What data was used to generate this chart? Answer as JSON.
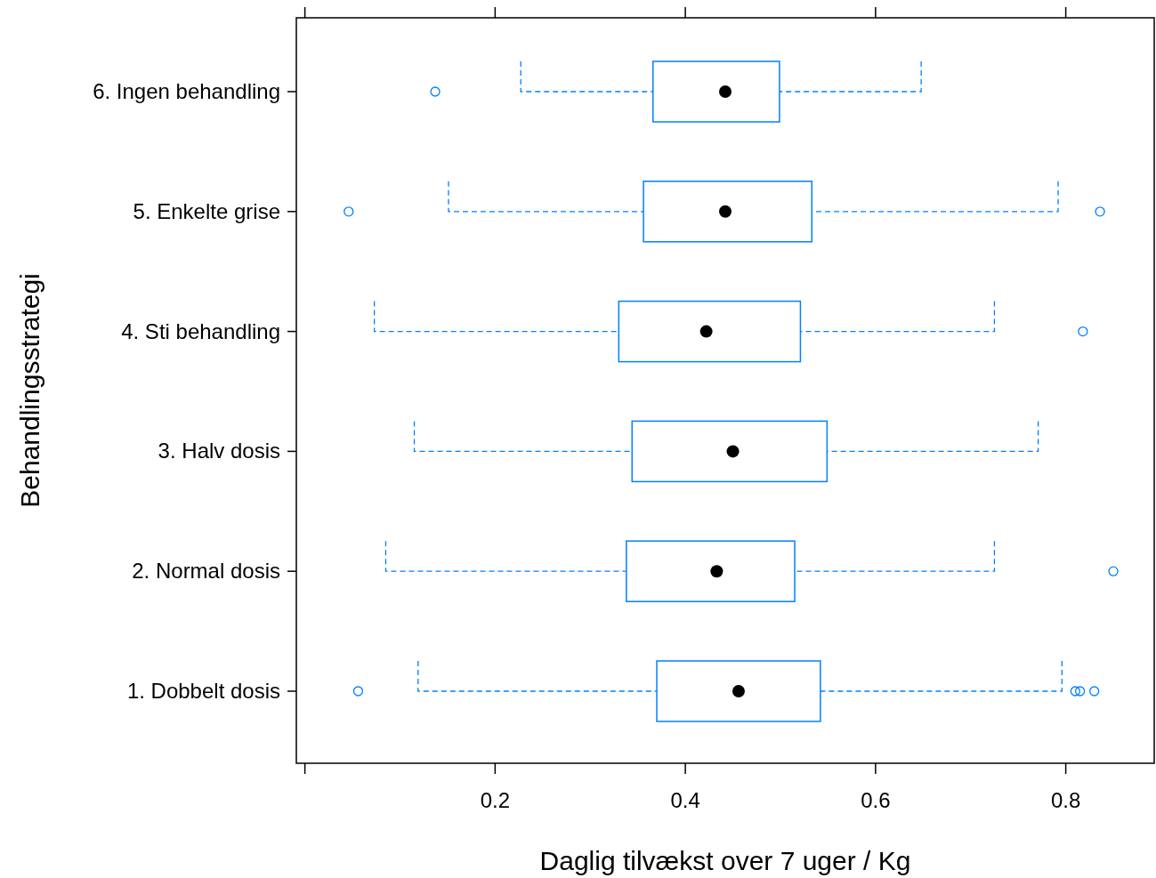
{
  "chart_data": {
    "type": "box",
    "orientation": "horizontal",
    "xlabel": "Daglig tilvækst over 7 uger / Kg",
    "ylabel": "Behandlingsstrategi",
    "categories": [
      "6. Ingen behandling",
      "5. Enkelte grise",
      "4. Sti behandling",
      "3. Halv dosis",
      "2. Normal dosis",
      "1. Dobbelt dosis"
    ],
    "color": "#0080ff",
    "xlim": [
      -0.009,
      0.893
    ],
    "xticks": [
      {
        "value": 0,
        "label": null
      },
      0.2,
      0.4,
      0.6,
      0.8
    ],
    "boxes": [
      {
        "low": 0.227,
        "q1": 0.366,
        "median": 0.442,
        "q3": 0.499,
        "high": 0.648,
        "outliers": [
          0.137
        ]
      },
      {
        "low": 0.151,
        "q1": 0.356,
        "median": 0.442,
        "q3": 0.533,
        "high": 0.792,
        "outliers": [
          0.046,
          0.836
        ]
      },
      {
        "low": 0.073,
        "q1": 0.33,
        "median": 0.422,
        "q3": 0.521,
        "high": 0.725,
        "outliers": [
          0.818
        ]
      },
      {
        "low": 0.115,
        "q1": 0.344,
        "median": 0.45,
        "q3": 0.549,
        "high": 0.771
      },
      {
        "low": 0.085,
        "q1": 0.338,
        "median": 0.433,
        "q3": 0.515,
        "high": 0.725,
        "outliers": [
          0.85
        ]
      },
      {
        "low": 0.119,
        "q1": 0.37,
        "median": 0.456,
        "q3": 0.542,
        "high": 0.796,
        "outliers": [
          0.056,
          0.81,
          0.815,
          0.83
        ]
      }
    ]
  }
}
